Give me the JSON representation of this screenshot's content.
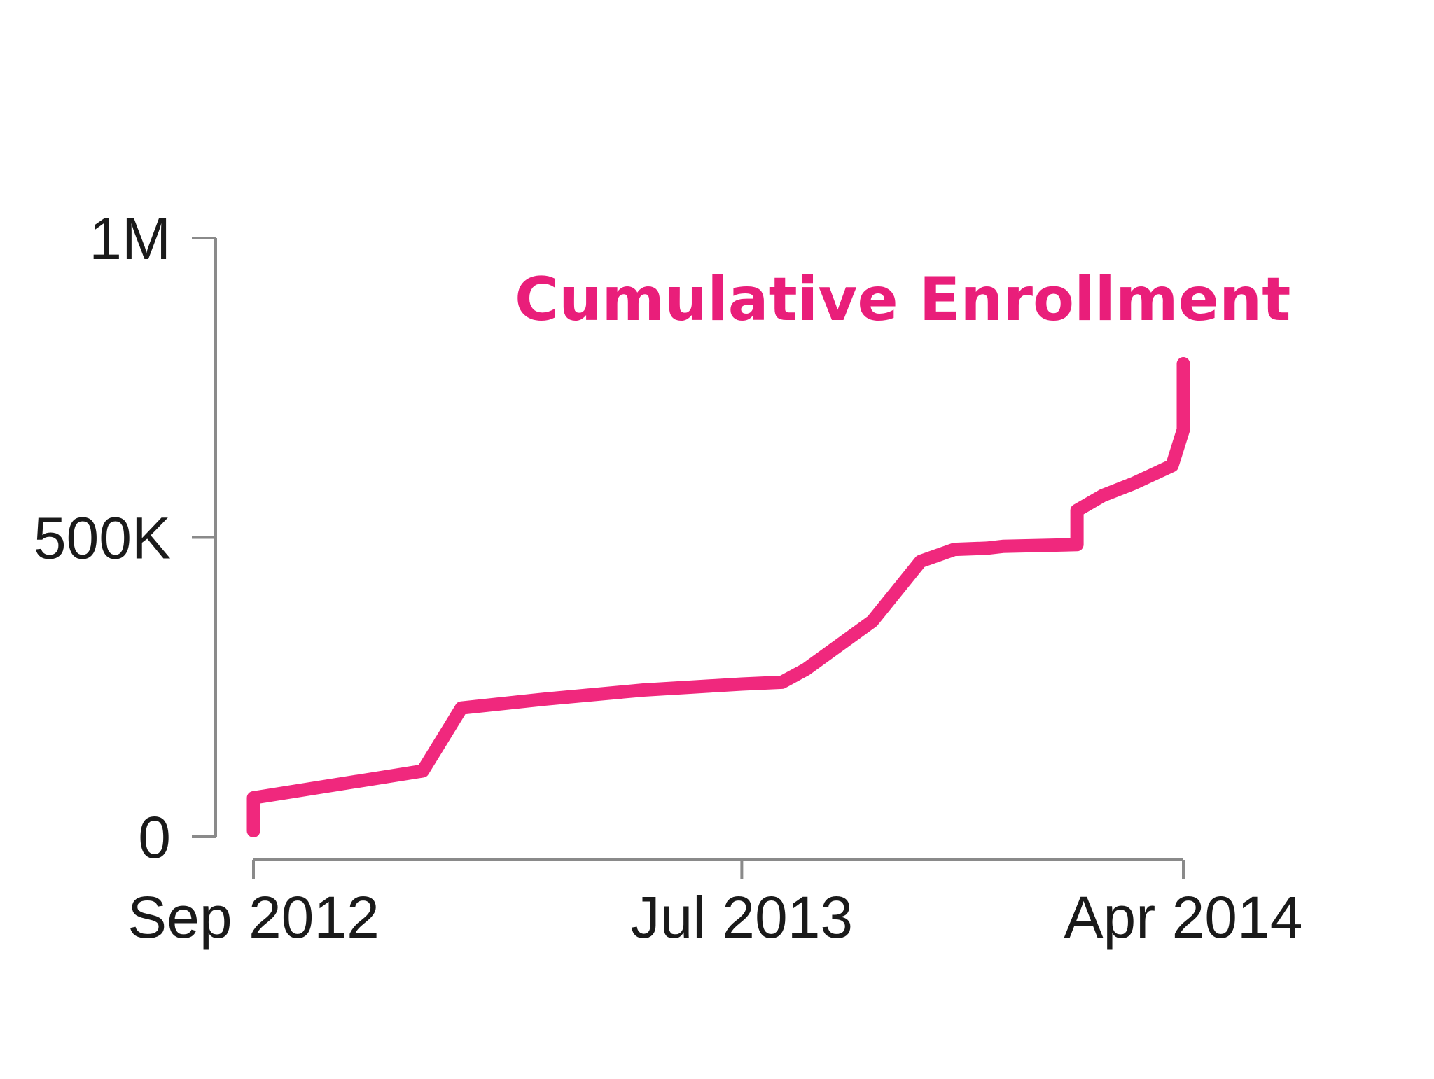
{
  "chart_data": {
    "type": "line",
    "title": "Cumulative Enrollment",
    "xlabel": "",
    "ylabel": "",
    "x_tick_labels": [
      "Sep 2012",
      "Jul 2013",
      "Apr 2014"
    ],
    "y_tick_labels": [
      "0",
      "500K",
      "1M"
    ],
    "y_ticks": [
      0,
      500000,
      1000000
    ],
    "ylim": [
      0,
      1000000
    ],
    "grid": false,
    "line_color": "#f0287d",
    "title_color": "#e91e7a",
    "series": [
      {
        "x": [
          "2012-09-01",
          "2012-09-01",
          "2012-12-15",
          "2013-01-08",
          "2013-03-01",
          "2013-05-01",
          "2013-07-01",
          "2013-07-26",
          "2013-08-10",
          "2013-09-20",
          "2013-10-20",
          "2013-11-10",
          "2013-11-30",
          "2013-12-10",
          "2014-01-25",
          "2014-01-25",
          "2014-02-10",
          "2014-03-01",
          "2014-03-25",
          "2014-04-01",
          "2014-04-01"
        ],
        "y": [
          10000,
          65000,
          110000,
          215000,
          230000,
          245000,
          255000,
          258000,
          280000,
          360000,
          460000,
          480000,
          482000,
          485000,
          488000,
          545000,
          570000,
          590000,
          620000,
          680000,
          790000
        ]
      }
    ]
  }
}
